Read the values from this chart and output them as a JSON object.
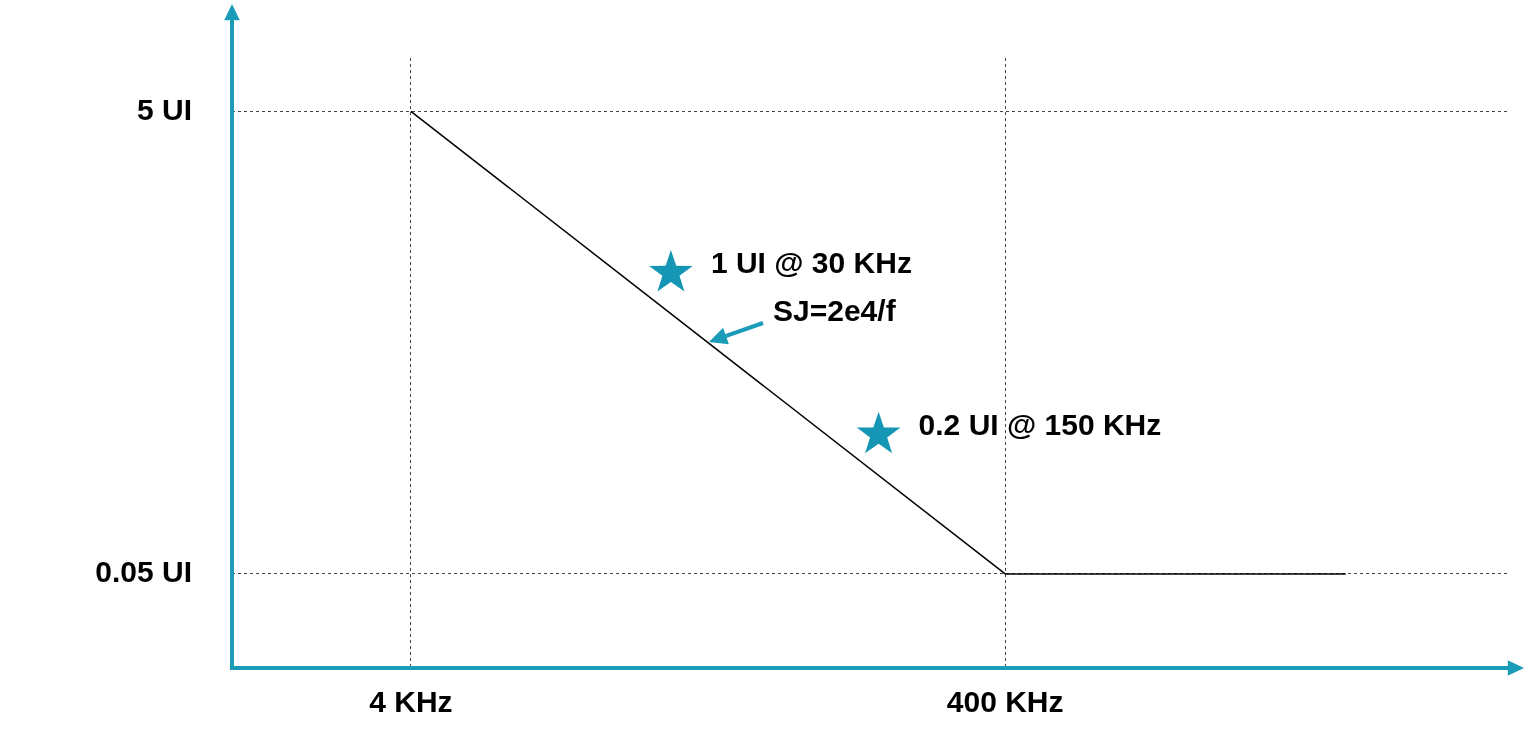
{
  "chart_data": {
    "type": "line",
    "log": "xy",
    "grid": true,
    "legend": false,
    "xlim": [
      1,
      20000
    ],
    "ylim": [
      0.02,
      8.5
    ],
    "xticks": [
      {
        "value": 4,
        "label": "4 KHz"
      },
      {
        "value": 400,
        "label": "400 KHz"
      }
    ],
    "yticks": [
      {
        "value": 0.05,
        "label": "0.05 UI"
      },
      {
        "value": 5,
        "label": "5 UI"
      }
    ],
    "series": [
      {
        "type": "line",
        "color": "#000000",
        "marker": "none",
        "line_style": "solid",
        "x": [
          4,
          400,
          5600
        ],
        "values": [
          5,
          0.05,
          0.05
        ]
      },
      {
        "type": "scatter",
        "color": "#1596b5",
        "marker": "star",
        "x": [
          30,
          150
        ],
        "values": [
          1,
          0.2
        ]
      }
    ],
    "annotations": [
      {
        "text": "1 UI @ 30 KHz",
        "x": 30,
        "y": 1
      },
      {
        "text": "0.2 UI @ 150 KHz",
        "x": 150,
        "y": 0.2
      },
      {
        "text": "SJ=2e4/f",
        "x": 40,
        "y": 0.5
      }
    ]
  }
}
